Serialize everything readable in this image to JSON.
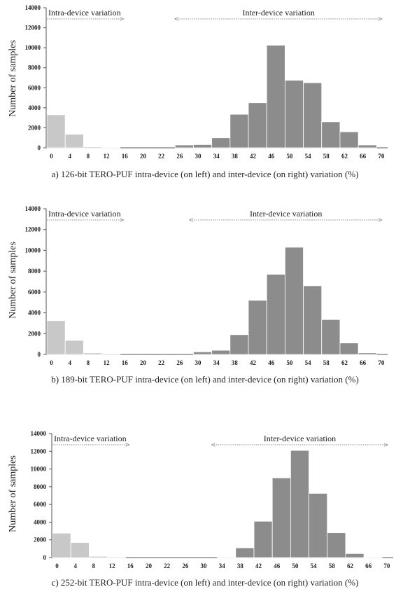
{
  "chart_data": [
    {
      "type": "bar",
      "ylabel": "Number of samples",
      "yticks": [
        "0",
        "2000",
        "4000",
        "6000",
        "8000",
        "10000",
        "12000",
        "14000"
      ],
      "ylim": [
        0,
        14000
      ],
      "x_tick_labels": [
        "0",
        "4",
        "8",
        "12",
        "16",
        "20",
        "22",
        "26",
        "30",
        "34",
        "38",
        "42",
        "46",
        "50",
        "54",
        "58",
        "62",
        "66",
        "70"
      ],
      "series": [
        {
          "name": "Intra-device variation",
          "color": "#c8c8c8",
          "values": [
            3300,
            1350,
            100,
            60,
            0,
            0,
            0,
            0,
            0,
            0,
            0,
            0,
            0,
            0,
            0,
            0,
            0,
            0
          ]
        },
        {
          "name": "Inter-device variation",
          "color": "#8c8c8c",
          "values": [
            0,
            0,
            0,
            0,
            0,
            0,
            0,
            280,
            320,
            1000,
            3350,
            4500,
            10250,
            6750,
            6500,
            2600,
            1600,
            280
          ]
        }
      ],
      "annotations": [
        {
          "text": "Intra-device variation",
          "arrow": "right",
          "from": 0,
          "to": 4.2
        },
        {
          "text": "Inter-device variation",
          "arrow": "both",
          "from": 7,
          "to": 18.3
        }
      ],
      "caption": "a) 126-bit TERO-PUF intra-device (on left) and inter-device (on right) variation (%)"
    },
    {
      "type": "bar",
      "ylabel": "Number of samples",
      "yticks": [
        "0",
        "2000",
        "4000",
        "6000",
        "8000",
        "10000",
        "12000",
        "14000"
      ],
      "ylim": [
        0,
        14000
      ],
      "x_tick_labels": [
        "0",
        "4",
        "8",
        "12",
        "16",
        "20",
        "22",
        "26",
        "30",
        "34",
        "38",
        "42",
        "46",
        "50",
        "54",
        "58",
        "62",
        "66",
        "70"
      ],
      "series": [
        {
          "name": "Intra-device variation",
          "color": "#c8c8c8",
          "values": [
            3250,
            1350,
            150,
            80,
            0,
            0,
            0,
            0,
            0,
            0,
            0,
            0,
            0,
            0,
            0,
            0,
            0,
            0
          ]
        },
        {
          "name": "Inter-device variation",
          "color": "#8c8c8c",
          "values": [
            0,
            0,
            0,
            0,
            0,
            0,
            0,
            0,
            250,
            400,
            1900,
            5200,
            7700,
            10300,
            6600,
            3350,
            1100,
            150
          ]
        }
      ],
      "annotations": [
        {
          "text": "Intra-device variation",
          "arrow": "right",
          "from": 0,
          "to": 4.2
        },
        {
          "text": "Inter-device variation",
          "arrow": "both",
          "from": 7.8,
          "to": 18.3
        }
      ],
      "caption": "b) 189-bit TERO-PUF intra-device (on left) and inter-device (on right) variation (%)"
    },
    {
      "type": "bar",
      "ylabel": "Number of samples",
      "yticks": [
        "0",
        "2000",
        "4000",
        "6000",
        "8000",
        "10000",
        "12000",
        "14000"
      ],
      "ylim": [
        0,
        14000
      ],
      "x_tick_labels": [
        "0",
        "4",
        "8",
        "12",
        "16",
        "20",
        "22",
        "26",
        "30",
        "34",
        "38",
        "42",
        "46",
        "50",
        "54",
        "58",
        "62",
        "66",
        "70"
      ],
      "series": [
        {
          "name": "Intra-device variation",
          "color": "#c8c8c8",
          "values": [
            2750,
            1700,
            150,
            80,
            0,
            0,
            0,
            0,
            0,
            0,
            0,
            0,
            0,
            0,
            0,
            0,
            0,
            0
          ]
        },
        {
          "name": "Inter-device variation",
          "color": "#8c8c8c",
          "values": [
            0,
            0,
            0,
            0,
            0,
            0,
            0,
            0,
            0,
            50,
            1100,
            4100,
            9000,
            12100,
            7250,
            2800,
            450,
            50
          ]
        }
      ],
      "annotations": [
        {
          "text": "Intra-device variation",
          "arrow": "right",
          "from": 0,
          "to": 4.2
        },
        {
          "text": "Inter-device variation",
          "arrow": "both",
          "from": 8.7,
          "to": 18.3
        }
      ],
      "caption": "c) 252-bit TERO-PUF intra-device (on left) and inter-device (on right) variation (%)"
    }
  ]
}
